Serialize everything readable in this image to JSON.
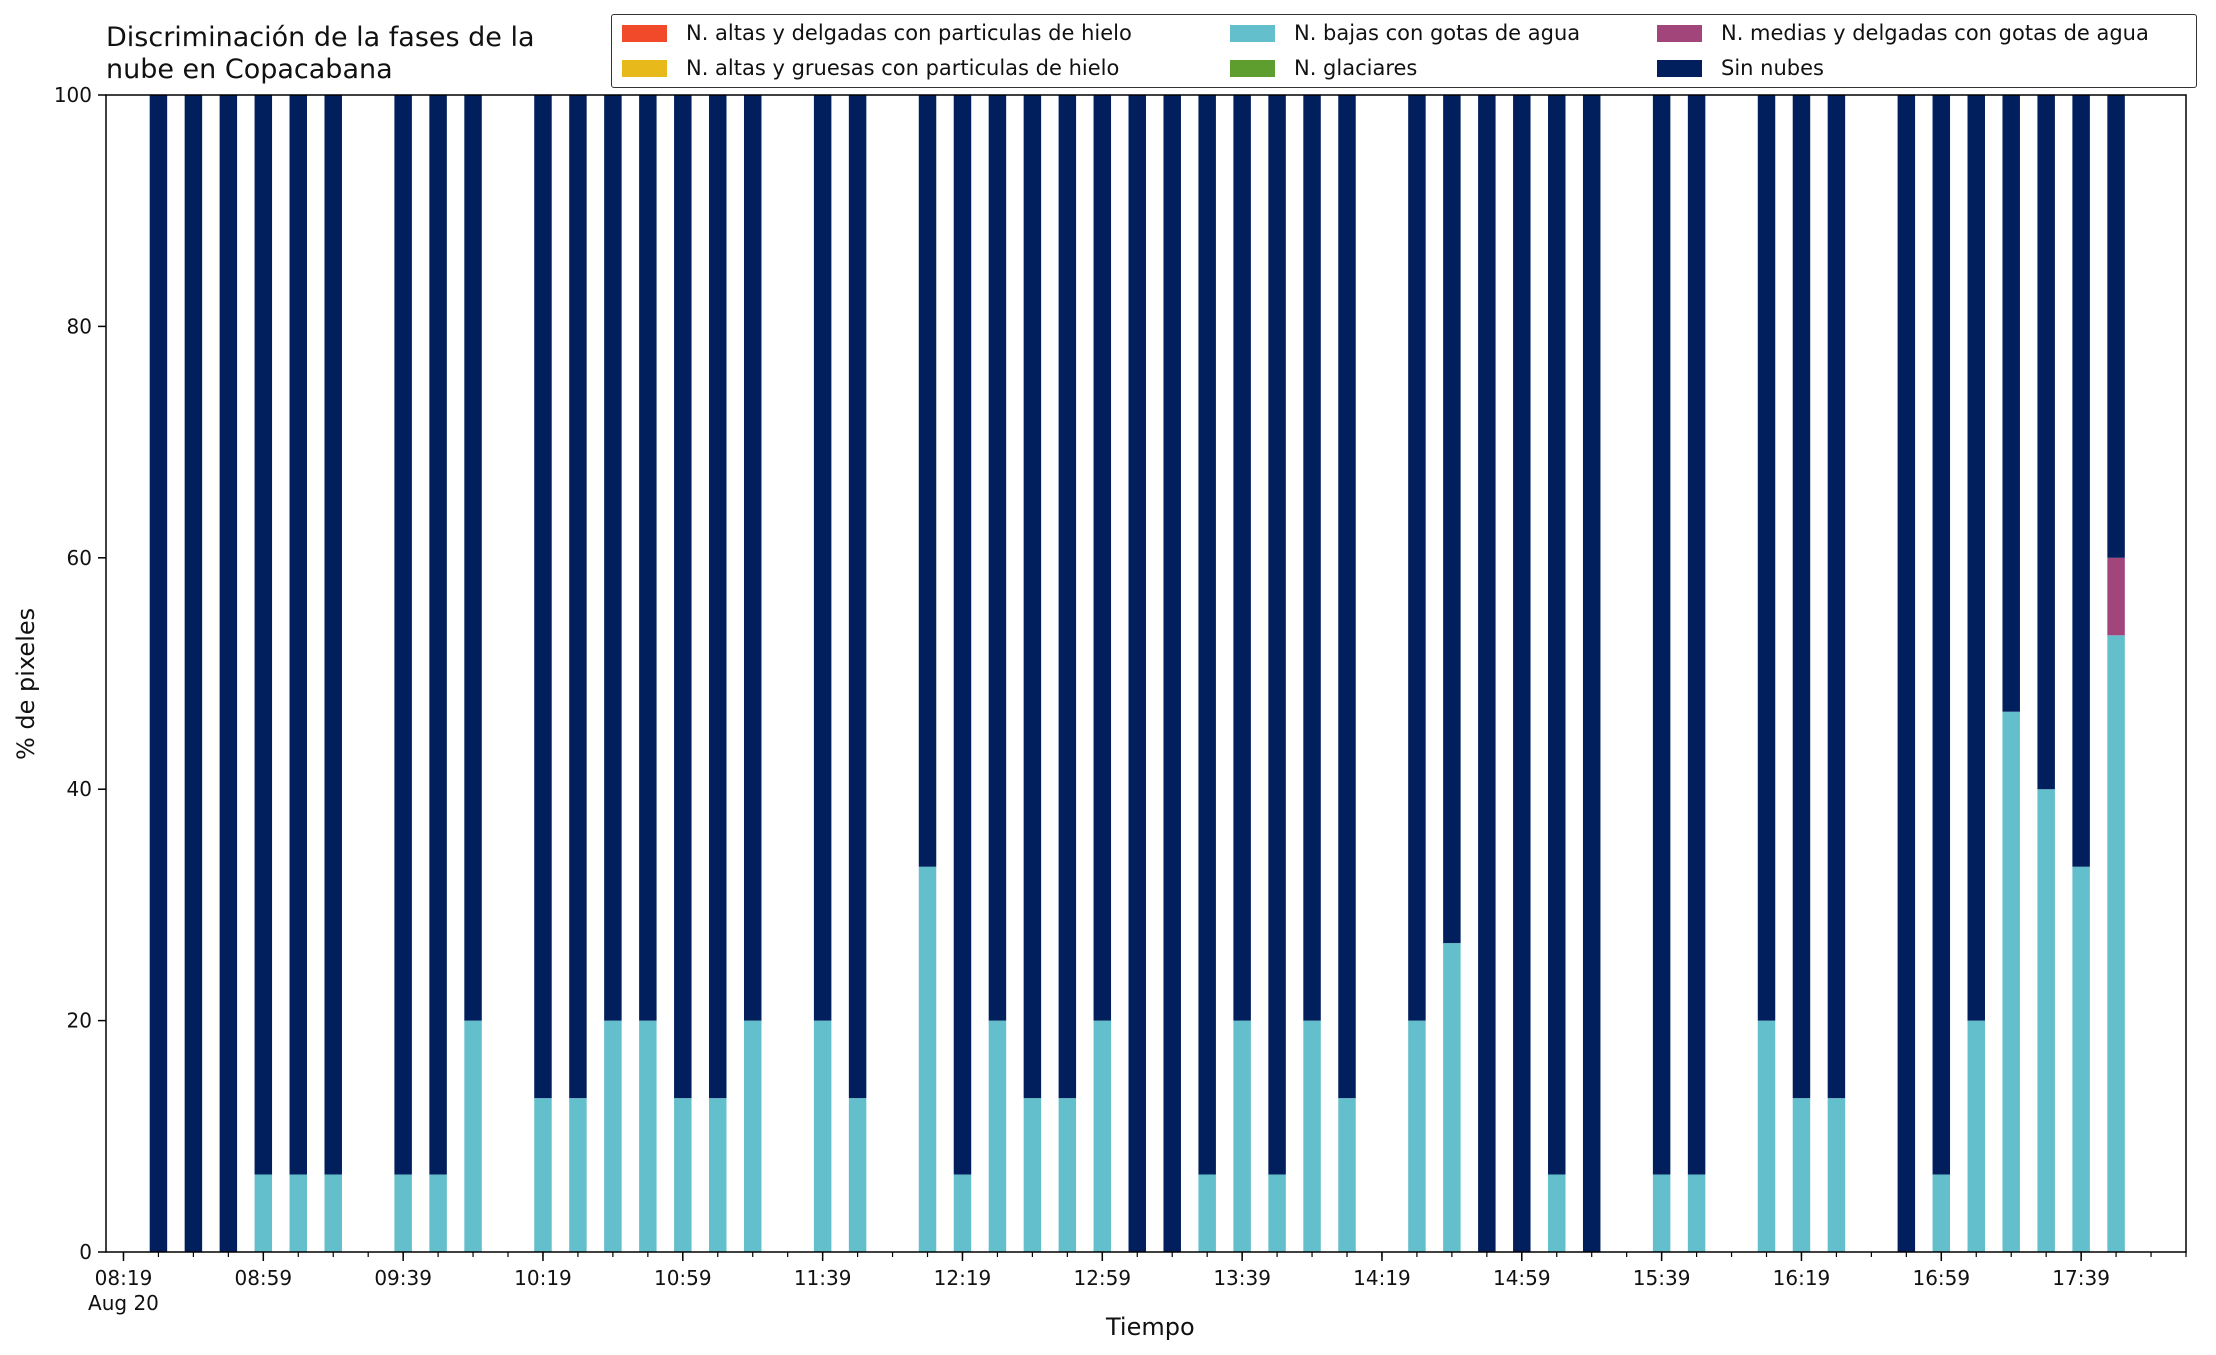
{
  "chart_data": {
    "type": "bar",
    "stacked": true,
    "title": "Discriminación de la fases de la\nnube en Copacabana",
    "xlabel": "Tiempo",
    "ylabel": "% de pixeles",
    "ylim": [
      0,
      100
    ],
    "yticks": [
      "0",
      "20",
      "40",
      "60",
      "80",
      "100"
    ],
    "xticks": [
      {
        "time": "08:19",
        "label": "08:19",
        "sub": "Aug 20"
      },
      {
        "time": "08:59",
        "label": "08:59"
      },
      {
        "time": "09:39",
        "label": "09:39"
      },
      {
        "time": "10:19",
        "label": "10:19"
      },
      {
        "time": "10:59",
        "label": "10:59"
      },
      {
        "time": "11:39",
        "label": "11:39"
      },
      {
        "time": "12:19",
        "label": "12:19"
      },
      {
        "time": "12:59",
        "label": "12:59"
      },
      {
        "time": "13:39",
        "label": "13:39"
      },
      {
        "time": "14:19",
        "label": "14:19"
      },
      {
        "time": "14:59",
        "label": "14:59"
      },
      {
        "time": "15:39",
        "label": "15:39"
      },
      {
        "time": "16:19",
        "label": "16:19"
      },
      {
        "time": "16:59",
        "label": "16:59"
      },
      {
        "time": "17:39",
        "label": "17:39"
      }
    ],
    "xrange": [
      "08:14",
      "18:09"
    ],
    "grid": false,
    "legend_position": "top-right",
    "times": [
      "08:29",
      "08:39",
      "08:49",
      "08:59",
      "09:09",
      "09:19",
      "09:39",
      "09:49",
      "09:59",
      "10:19",
      "10:29",
      "10:39",
      "10:49",
      "10:59",
      "11:09",
      "11:19",
      "11:39",
      "11:49",
      "12:09",
      "12:19",
      "12:29",
      "12:39",
      "12:49",
      "12:59",
      "13:09",
      "13:19",
      "13:29",
      "13:39",
      "13:49",
      "13:59",
      "14:09",
      "14:29",
      "14:39",
      "14:49",
      "14:59",
      "15:09",
      "15:19",
      "15:39",
      "15:49",
      "16:09",
      "16:19",
      "16:29",
      "16:49",
      "16:59",
      "17:09",
      "17:19",
      "17:29",
      "17:39",
      "17:49"
    ],
    "series": [
      {
        "name": "N. altas y delgadas con particulas de hielo",
        "color": "#f04a2b",
        "values": [
          0,
          0,
          0,
          0,
          0,
          0,
          0,
          0,
          0,
          0,
          0,
          0,
          0,
          0,
          0,
          0,
          0,
          0,
          0,
          0,
          0,
          0,
          0,
          0,
          0,
          0,
          0,
          0,
          0,
          0,
          0,
          0,
          0,
          0,
          0,
          0,
          0,
          0,
          0,
          0,
          0,
          0,
          0,
          0,
          0,
          0,
          0,
          0,
          0
        ]
      },
      {
        "name": "N. altas y gruesas con particulas de hielo",
        "color": "#e8b91a",
        "values": [
          0,
          0,
          0,
          0,
          0,
          0,
          0,
          0,
          0,
          0,
          0,
          0,
          0,
          0,
          0,
          0,
          0,
          0,
          0,
          0,
          0,
          0,
          0,
          0,
          0,
          0,
          0,
          0,
          0,
          0,
          0,
          0,
          0,
          0,
          0,
          0,
          0,
          0,
          0,
          0,
          0,
          0,
          0,
          0,
          0,
          0,
          0,
          0,
          0
        ]
      },
      {
        "name": "N. bajas con gotas de agua",
        "color": "#64bfcc",
        "values": [
          0,
          0,
          0,
          6.7,
          6.7,
          6.7,
          6.7,
          6.7,
          20,
          13.3,
          13.3,
          20,
          20,
          13.3,
          13.3,
          20,
          20,
          13.3,
          33.3,
          6.7,
          20,
          13.3,
          13.3,
          20,
          0,
          0,
          6.7,
          20,
          6.7,
          20,
          13.3,
          20,
          26.7,
          0,
          0,
          6.7,
          0,
          6.7,
          6.7,
          20,
          13.3,
          13.3,
          0,
          6.7,
          20,
          46.7,
          40,
          33.3,
          53.3
        ]
      },
      {
        "name": "N. glaciares",
        "color": "#5e9e2e",
        "values": [
          0,
          0,
          0,
          0,
          0,
          0,
          0,
          0,
          0,
          0,
          0,
          0,
          0,
          0,
          0,
          0,
          0,
          0,
          0,
          0,
          0,
          0,
          0,
          0,
          0,
          0,
          0,
          0,
          0,
          0,
          0,
          0,
          0,
          0,
          0,
          0,
          0,
          0,
          0,
          0,
          0,
          0,
          0,
          0,
          0,
          0,
          0,
          0,
          0
        ]
      },
      {
        "name": "N. medias y delgadas con gotas de agua",
        "color": "#a2457a",
        "values": [
          0,
          0,
          0,
          0,
          0,
          0,
          0,
          0,
          0,
          0,
          0,
          0,
          0,
          0,
          0,
          0,
          0,
          0,
          0,
          0,
          0,
          0,
          0,
          0,
          0,
          0,
          0,
          0,
          0,
          0,
          0,
          0,
          0,
          0,
          0,
          0,
          0,
          0,
          0,
          0,
          0,
          0,
          0,
          0,
          0,
          0,
          0,
          0,
          6.7
        ]
      },
      {
        "name": "Sin nubes",
        "color": "#001f5c",
        "values": [
          100,
          100,
          100,
          93.3,
          93.3,
          93.3,
          93.3,
          93.3,
          80,
          86.7,
          86.7,
          80,
          80,
          86.7,
          86.7,
          80,
          80,
          86.7,
          66.7,
          93.3,
          80,
          86.7,
          86.7,
          80,
          100,
          100,
          93.3,
          80,
          93.3,
          80,
          86.7,
          80,
          73.3,
          100,
          100,
          93.3,
          100,
          93.3,
          93.3,
          80,
          86.7,
          86.7,
          100,
          93.3,
          80,
          53.3,
          60,
          66.7,
          40
        ]
      }
    ]
  }
}
